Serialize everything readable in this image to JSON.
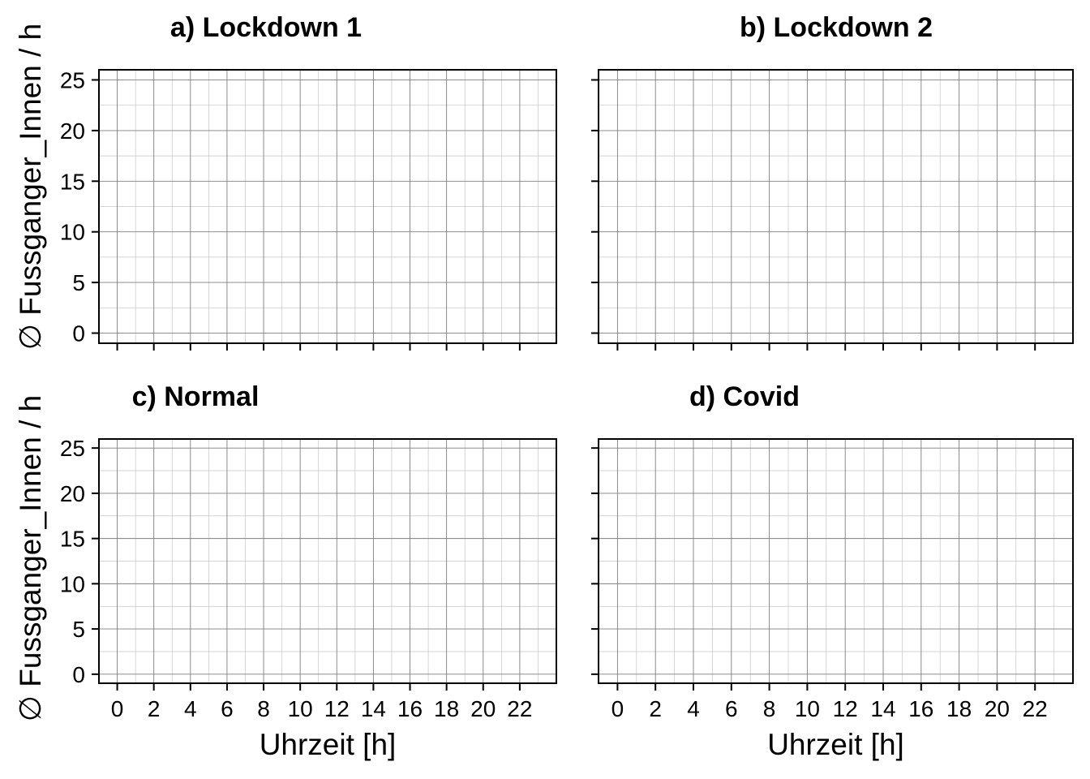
{
  "chart_data": [
    {
      "type": "line",
      "title": "a) Lockdown 1",
      "xlabel": "",
      "ylabel": "",
      "xlim": [
        -1,
        24
      ],
      "ylim": [
        -1,
        26
      ],
      "xticks": [
        0,
        2,
        4,
        6,
        8,
        10,
        12,
        14,
        16,
        18,
        20,
        22
      ],
      "yticks": [
        0,
        5,
        10,
        15,
        20,
        25
      ],
      "show_xtick_labels": false,
      "show_ytick_labels": true,
      "grid": true,
      "series": []
    },
    {
      "type": "line",
      "title": "b) Lockdown 2",
      "xlabel": "",
      "ylabel": "",
      "xlim": [
        -1,
        24
      ],
      "ylim": [
        -1,
        26
      ],
      "xticks": [
        0,
        2,
        4,
        6,
        8,
        10,
        12,
        14,
        16,
        18,
        20,
        22
      ],
      "yticks": [
        0,
        5,
        10,
        15,
        20,
        25
      ],
      "show_xtick_labels": false,
      "show_ytick_labels": false,
      "grid": true,
      "series": []
    },
    {
      "type": "line",
      "title": "c) Normal",
      "xlabel": "Uhrzeit [h]",
      "ylabel": "",
      "xlim": [
        -1,
        24
      ],
      "ylim": [
        -1,
        26
      ],
      "xticks": [
        0,
        2,
        4,
        6,
        8,
        10,
        12,
        14,
        16,
        18,
        20,
        22
      ],
      "yticks": [
        0,
        5,
        10,
        15,
        20,
        25
      ],
      "show_xtick_labels": true,
      "show_ytick_labels": true,
      "grid": true,
      "series": []
    },
    {
      "type": "line",
      "title": "d) Covid",
      "xlabel": "Uhrzeit [h]",
      "ylabel": "",
      "xlim": [
        -1,
        24
      ],
      "ylim": [
        -1,
        26
      ],
      "xticks": [
        0,
        2,
        4,
        6,
        8,
        10,
        12,
        14,
        16,
        18,
        20,
        22
      ],
      "yticks": [
        0,
        5,
        10,
        15,
        20,
        25
      ],
      "show_xtick_labels": true,
      "show_ytick_labels": false,
      "grid": true,
      "series": []
    }
  ],
  "shared_ylabel": "∅ Fussganger_Innen / h",
  "colors": {
    "grid_major": "#7f7f7f",
    "grid_minor": "#c4c4c4",
    "frame": "#000000"
  }
}
